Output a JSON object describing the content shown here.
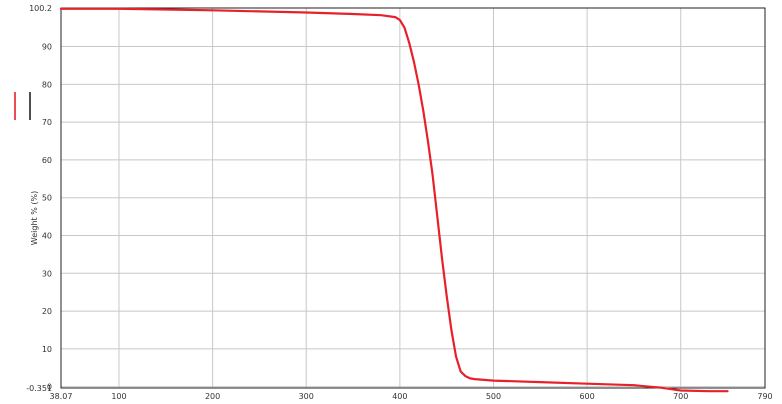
{
  "chart_data": {
    "type": "line",
    "xlabel": "",
    "ylabel": "Weight % (%)",
    "xlim": [
      38.07,
      790
    ],
    "ylim": [
      -0.351,
      100.2
    ],
    "x_ticks": [
      {
        "value": 38.07,
        "label": "38.07"
      },
      {
        "value": 100,
        "label": "100"
      },
      {
        "value": 200,
        "label": "200"
      },
      {
        "value": 300,
        "label": "300"
      },
      {
        "value": 400,
        "label": "400"
      },
      {
        "value": 500,
        "label": "500"
      },
      {
        "value": 600,
        "label": "600"
      },
      {
        "value": 700,
        "label": "700"
      },
      {
        "value": 790,
        "label": "790"
      }
    ],
    "y_ticks": [
      {
        "value": 100.2,
        "label": "100.2"
      },
      {
        "value": 90,
        "label": "90"
      },
      {
        "value": 80,
        "label": "80"
      },
      {
        "value": 70,
        "label": "70"
      },
      {
        "value": 60,
        "label": "60"
      },
      {
        "value": 50,
        "label": "50"
      },
      {
        "value": 40,
        "label": "40"
      },
      {
        "value": 30,
        "label": "30"
      },
      {
        "value": 20,
        "label": "20"
      },
      {
        "value": 10,
        "label": "10"
      },
      {
        "value": 0,
        "label": "0"
      },
      {
        "value": -0.351,
        "label": "-0.351"
      }
    ],
    "grid": true,
    "legend": "left",
    "series": [
      {
        "color": "#e8202a",
        "x": [
          38.07,
          100,
          150,
          200,
          250,
          300,
          350,
          380,
          395,
          400,
          405,
          410,
          415,
          420,
          425,
          430,
          435,
          440,
          445,
          450,
          455,
          460,
          465,
          470,
          475,
          480,
          490,
          500,
          550,
          600,
          650,
          680,
          700,
          730,
          750
        ],
        "y": [
          100.0,
          100.0,
          99.8,
          99.6,
          99.3,
          99.0,
          98.6,
          98.3,
          97.8,
          97.0,
          95.0,
          91.0,
          86.0,
          80.0,
          73.0,
          65.0,
          56.0,
          45.0,
          34.0,
          24.0,
          15.0,
          8.0,
          4.0,
          2.8,
          2.2,
          2.0,
          1.8,
          1.6,
          1.2,
          0.8,
          0.4,
          -0.3,
          -1.0,
          -1.2,
          -1.2
        ]
      },
      {
        "color": "#222222",
        "x": [],
        "y": []
      }
    ]
  }
}
